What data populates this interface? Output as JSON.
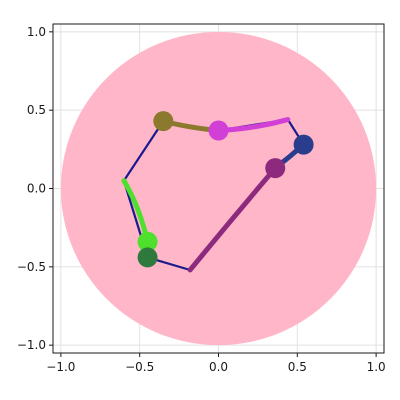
{
  "chart_data": {
    "type": "line",
    "title": "",
    "xlabel": "",
    "ylabel": "",
    "xlim": [
      -1.05,
      1.05
    ],
    "ylim": [
      -1.05,
      1.05
    ],
    "grid": true,
    "x_ticks": [
      -1.0,
      -0.5,
      0.0,
      0.5,
      1.0
    ],
    "y_ticks": [
      -1.0,
      -0.5,
      0.0,
      0.5,
      1.0
    ],
    "x_tick_labels": [
      "−1.0",
      "−0.5",
      "0.0",
      "0.5",
      "1.0"
    ],
    "y_tick_labels": [
      "−1.0",
      "−0.5",
      "0.0",
      "0.5",
      "1.0"
    ],
    "disk": {
      "center": [
        0,
        0
      ],
      "radius": 1.0,
      "color": "#ffb6c8"
    },
    "colors": {
      "axis": "#1a1a1a",
      "grid": "#e2e2e2",
      "boundary": "#1a1a8c"
    },
    "boundary_path": [
      [
        -0.35,
        0.43
      ],
      [
        -0.6,
        0.05
      ],
      [
        -0.45,
        -0.44
      ],
      [
        -0.18,
        -0.52
      ],
      [
        0.36,
        0.13
      ],
      [
        0.54,
        0.28
      ],
      [
        0.44,
        0.44
      ],
      [
        0.0,
        0.37
      ],
      [
        -0.35,
        0.43
      ]
    ],
    "series": [
      {
        "points": [
          [
            -0.35,
            0.43
          ],
          [
            -0.2,
            0.39
          ],
          [
            0.0,
            0.37
          ]
        ],
        "color": "#8b7a2e",
        "marker": [
          -0.35,
          0.43
        ]
      },
      {
        "points": [
          [
            0.0,
            0.37
          ],
          [
            0.22,
            0.38
          ],
          [
            0.44,
            0.44
          ]
        ],
        "color": "#d23fd6",
        "marker": [
          0.0,
          0.37
        ]
      },
      {
        "points": [
          [
            0.54,
            0.28
          ],
          [
            0.45,
            0.2
          ],
          [
            0.36,
            0.13
          ]
        ],
        "color": "#2a3d8c",
        "marker": [
          0.54,
          0.28
        ]
      },
      {
        "points": [
          [
            0.36,
            0.13
          ],
          [
            0.08,
            -0.2
          ],
          [
            -0.18,
            -0.52
          ]
        ],
        "color": "#8e2a7e",
        "marker": [
          0.36,
          0.13
        ]
      },
      {
        "points": [
          [
            -0.6,
            0.05
          ],
          [
            -0.5,
            -0.12
          ],
          [
            -0.45,
            -0.34
          ]
        ],
        "color": "#4ee02c",
        "marker": [
          -0.45,
          -0.34
        ]
      },
      {
        "points": [
          [
            -0.45,
            -0.34
          ],
          [
            -0.45,
            -0.44
          ]
        ],
        "color": "#2e7a3c",
        "marker": [
          -0.45,
          -0.44
        ]
      }
    ]
  }
}
